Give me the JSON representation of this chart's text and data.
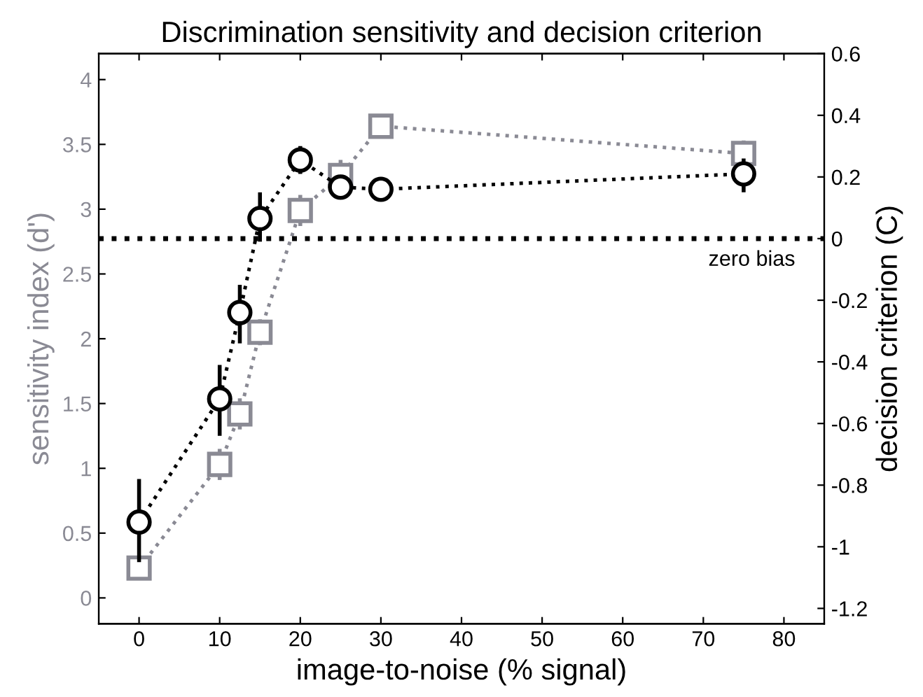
{
  "chart_data": {
    "type": "line",
    "title": "Discrimination sensitivity and decision criterion",
    "xlabel": "image-to-noise (% signal)",
    "ylabel": "sensitivity index (d')",
    "y2label": "decision criterion (C)",
    "xlim": [
      -5,
      85
    ],
    "xticks": [
      0,
      10,
      20,
      30,
      40,
      50,
      60,
      70,
      80
    ],
    "ylim": [
      -0.2,
      4.2
    ],
    "yticks": [
      0,
      0.5,
      1,
      1.5,
      2,
      2.5,
      3,
      3.5,
      4
    ],
    "y2lim": [
      -1.25,
      0.6
    ],
    "y2ticks": [
      -1.2,
      -1,
      -0.8,
      -0.6,
      -0.4,
      -0.2,
      0,
      0.2,
      0.4,
      0.6
    ],
    "grid": false,
    "line_style": "dotted",
    "series": [
      {
        "x": [
          0,
          10,
          12.5,
          15,
          20,
          25,
          30,
          75
        ],
        "values": [
          0.23,
          1.03,
          1.42,
          2.05,
          2.99,
          3.26,
          3.64,
          3.43
        ],
        "errors": [
          0.05,
          0.12,
          0.12,
          0.1,
          0.12,
          0.12,
          null,
          0.1
        ],
        "color": "#8a8a94",
        "marker": "square",
        "axis": "y"
      },
      {
        "x": [
          0,
          10,
          12.5,
          15,
          20,
          25,
          30,
          75
        ],
        "values": [
          -0.92,
          -0.52,
          -0.24,
          0.065,
          0.255,
          0.167,
          0.16,
          0.21
        ],
        "errors": [
          [
            -1.05,
            -0.78
          ],
          [
            -0.64,
            -0.41
          ],
          [
            -0.34,
            -0.15
          ],
          [
            -0.01,
            0.15
          ],
          [
            0.21,
            0.3
          ],
          null,
          null,
          [
            0.15,
            0.26
          ]
        ],
        "color": "#000000",
        "marker": "circle",
        "axis": "y2"
      }
    ],
    "ref_lines": [
      {
        "axis": "y2",
        "value": 0,
        "label": "zero bias",
        "color": "#000000",
        "line_style": "dotted"
      }
    ]
  }
}
